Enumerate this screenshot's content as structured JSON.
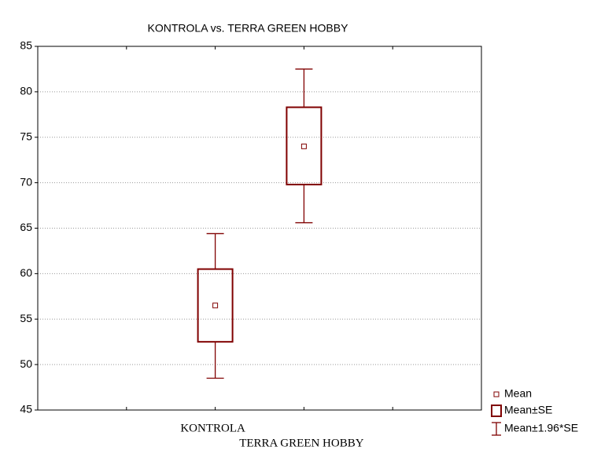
{
  "chart_data": {
    "type": "boxplot",
    "title": "KONTROLA vs. TERRA GREEN HOBBY",
    "categories": [
      "KONTROLA",
      "TERRA GREEN HOBBY"
    ],
    "mean": [
      56.5,
      74.0
    ],
    "box_low": [
      52.5,
      69.8
    ],
    "box_high": [
      60.5,
      78.3
    ],
    "whisker_low": [
      48.5,
      65.6
    ],
    "whisker_high": [
      64.4,
      82.5
    ],
    "color": "#800000",
    "legend": [
      "Mean",
      "Mean±SE",
      "Mean±1.96*SE"
    ],
    "ylim": [
      45,
      85
    ],
    "yticks": [
      45,
      50,
      55,
      60,
      65,
      70,
      75,
      80,
      85
    ],
    "grid": true
  }
}
